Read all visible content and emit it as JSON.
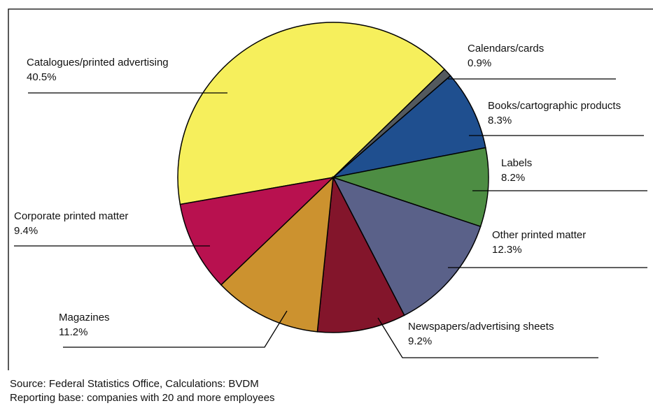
{
  "chart_data": {
    "type": "pie",
    "categories": [
      "Catalogues/printed advertising",
      "Calendars/cards",
      "Books/cartographic products",
      "Labels",
      "Other printed matter",
      "Newspapers/advertising sheets",
      "Magazines",
      "Corporate printed matter"
    ],
    "values": [
      40.5,
      0.9,
      8.3,
      8.2,
      12.3,
      9.2,
      11.2,
      9.4
    ],
    "value_labels": [
      "40.5%",
      "0.9%",
      "8.3%",
      "8.2%",
      "12.3%",
      "9.2%",
      "11.2%",
      "9.4%"
    ],
    "colors": [
      "#f6ef5c",
      "#53595e",
      "#1f4f8f",
      "#4d8d43",
      "#5a6189",
      "#83152b",
      "#cc922f",
      "#b8114f"
    ],
    "source": [
      "Source: Federal Statistics Office, Calculations: BVDM",
      "Reporting base: companies with 20 and more employees"
    ]
  }
}
